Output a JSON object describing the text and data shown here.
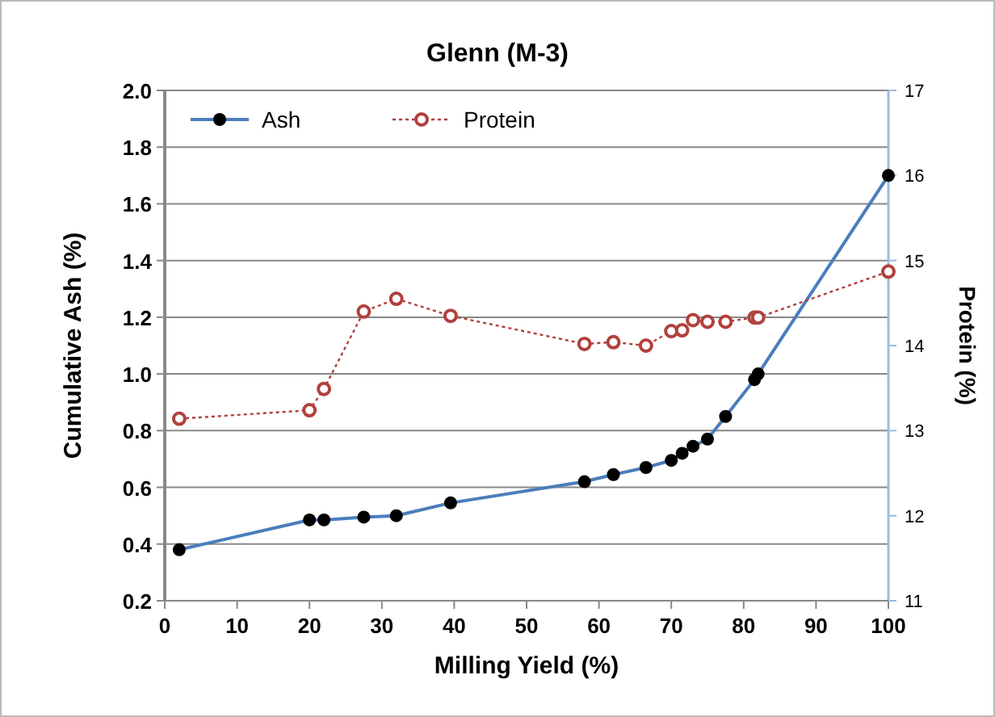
{
  "chart_data": {
    "type": "line",
    "title": "Glenn (M-3)",
    "xlabel": "Milling Yield (%)",
    "ylabel": "Cumulative Ash (%)",
    "y2label": "Protein (%)",
    "x": [
      2,
      20,
      22,
      27.5,
      32,
      39.5,
      58,
      62,
      66.5,
      70,
      71.5,
      73,
      75,
      77.5,
      81.5,
      82,
      100
    ],
    "series": [
      {
        "name": "Ash",
        "color": "#4a7ebb",
        "marker": "circle",
        "line_style": "solid",
        "values": [
          0.38,
          0.485,
          0.485,
          0.495,
          0.5,
          0.545,
          0.62,
          0.645,
          0.67,
          0.695,
          0.72,
          0.745,
          0.77,
          0.85,
          0.98,
          1.0,
          1.7
        ]
      },
      {
        "name": "Protein",
        "color": "#b0413e",
        "marker": "circle",
        "line_style": "dotted",
        "axis": "y2",
        "values": [
          13.14,
          13.24,
          13.49,
          14.4,
          14.55,
          14.35,
          14.02,
          14.04,
          14.0,
          14.17,
          14.18,
          14.3,
          14.28,
          14.28,
          14.33,
          14.33,
          14.87
        ]
      }
    ],
    "xlim": [
      0,
      100
    ],
    "xticks": [
      0,
      10,
      20,
      30,
      40,
      50,
      60,
      70,
      80,
      90,
      100
    ],
    "ylim": [
      0.2,
      2.0
    ],
    "yticks": [
      {
        "value": 0.2,
        "label": "0.2"
      },
      {
        "value": 0.4,
        "label": "0.4"
      },
      {
        "value": 0.6,
        "label": "0.6"
      },
      {
        "value": 0.8,
        "label": "0.8"
      },
      {
        "value": 1.0,
        "label": "1.0"
      },
      {
        "value": 1.2,
        "label": "1.2"
      },
      {
        "value": 1.4,
        "label": "1.4"
      },
      {
        "value": 1.6,
        "label": "1.6"
      },
      {
        "value": 1.8,
        "label": "1.8"
      },
      {
        "value": 2.0,
        "label": "2.0"
      }
    ],
    "y2lim": [
      11,
      17
    ],
    "y2ticks": [
      11,
      12,
      13,
      14,
      15,
      16,
      17
    ],
    "grid": "y",
    "legend": "top left"
  }
}
